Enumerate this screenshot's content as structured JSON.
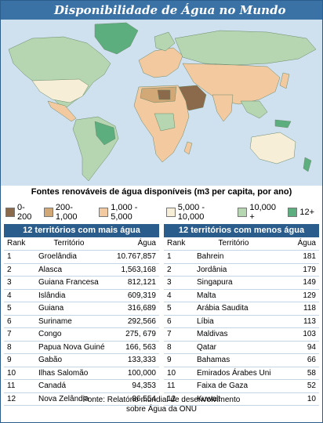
{
  "title": "Disponibilidade de Água no Mundo",
  "subtitle": "Fontes renováveis de água disponíveis (m3  per capita, por ano)",
  "legend": [
    {
      "label": "0-200",
      "color": "#8a6a4a"
    },
    {
      "label": "200-1,000",
      "color": "#d2a876"
    },
    {
      "label": "1,000 - 5,000",
      "color": "#f3c9a0"
    },
    {
      "label": "5,000 - 10,000",
      "color": "#f7eed8"
    },
    {
      "label": "10,000 +",
      "color": "#b5d6b0"
    },
    {
      "label": "12+",
      "color": "#5cae7e"
    }
  ],
  "colors": {
    "ocean": "#cfe0ee",
    "header": "#2a5d8c",
    "title_bar": "#3b72a6"
  },
  "table_most": {
    "header": "12 territórios com mais água",
    "col_rank": "Rank",
    "col_territory": "Território",
    "col_water": "Água",
    "rows": [
      {
        "rank": "1",
        "territory": "Groelândia",
        "value": "10.767,857"
      },
      {
        "rank": "2",
        "territory": "Alasca",
        "value": "1,563,168"
      },
      {
        "rank": "3",
        "territory": "Guiana Francesa",
        "value": "812,121"
      },
      {
        "rank": "4",
        "territory": "Islândia",
        "value": "609,319"
      },
      {
        "rank": "5",
        "territory": "Guiana",
        "value": "316,689"
      },
      {
        "rank": "6",
        "territory": "Suriname",
        "value": "292,566"
      },
      {
        "rank": "7",
        "territory": "Congo",
        "value": "275, 679"
      },
      {
        "rank": "8",
        "territory": "Papua Nova Guiné",
        "value": "166, 563"
      },
      {
        "rank": "9",
        "territory": "Gabão",
        "value": "133,333"
      },
      {
        "rank": "10",
        "territory": "Ilhas Salomão",
        "value": "100,000"
      },
      {
        "rank": "11",
        "territory": "Canadá",
        "value": "94,353"
      },
      {
        "rank": "12",
        "territory": "Nova Zelândia",
        "value": "86,554"
      }
    ]
  },
  "table_least": {
    "header": "12 territórios com menos água",
    "col_rank": "Rank",
    "col_territory": "Território",
    "col_water": "Água",
    "rows": [
      {
        "rank": "1",
        "territory": "Bahrein",
        "value": "181"
      },
      {
        "rank": "2",
        "territory": "Jordânia",
        "value": "179"
      },
      {
        "rank": "3",
        "territory": "Singapura",
        "value": "149"
      },
      {
        "rank": "4",
        "territory": "Malta",
        "value": "129"
      },
      {
        "rank": "5",
        "territory": "Arábia Saudita",
        "value": "118"
      },
      {
        "rank": "6",
        "territory": "Líbia",
        "value": "113"
      },
      {
        "rank": "7",
        "territory": "Maldivas",
        "value": "103"
      },
      {
        "rank": "8",
        "territory": "Qatar",
        "value": "94"
      },
      {
        "rank": "9",
        "territory": "Bahamas",
        "value": "66"
      },
      {
        "rank": "10",
        "territory": "Emirados Árabes Unidos",
        "value": "58"
      },
      {
        "rank": "11",
        "territory": "Faixa de Gaza",
        "value": "52"
      },
      {
        "rank": "12",
        "territory": "Kuwait",
        "value": "10"
      }
    ]
  },
  "source_line1": "Fonte: Relatório mundial de desenvolvimento",
  "source_line2": "sobre Água da ONU"
}
